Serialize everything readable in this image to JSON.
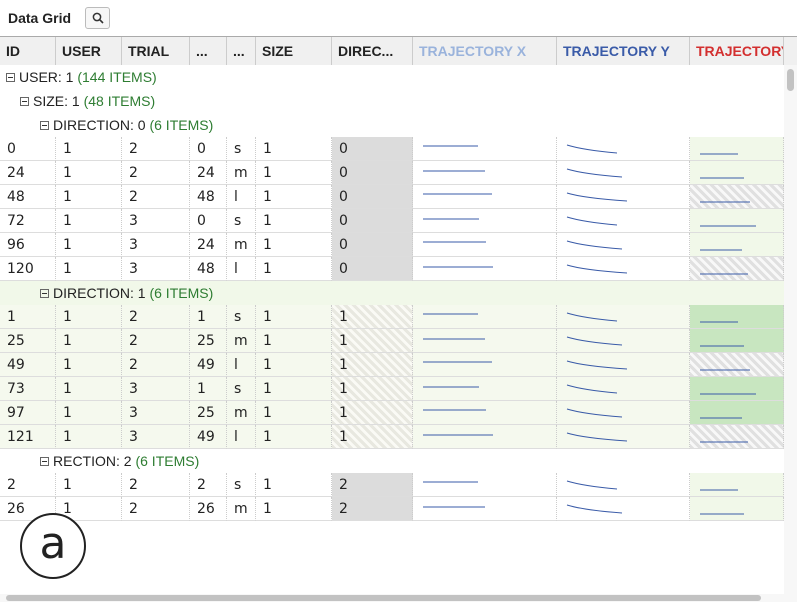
{
  "panel": {
    "title": "Data Grid"
  },
  "columns": [
    {
      "label": "ID",
      "color": "#222222"
    },
    {
      "label": "USER",
      "color": "#222222"
    },
    {
      "label": "TRIAL",
      "color": "#222222"
    },
    {
      "label": "...",
      "color": "#222222"
    },
    {
      "label": "...",
      "color": "#222222"
    },
    {
      "label": "SIZE",
      "color": "#222222"
    },
    {
      "label": "DIREC...",
      "color": "#222222"
    },
    {
      "label": "TRAJECTORY X",
      "color": "#9ab3dc"
    },
    {
      "label": "TRAJECTORY Y",
      "color": "#3a5ba8"
    },
    {
      "label": "TRAJECTORY",
      "color": "#d32f2f"
    }
  ],
  "groups": {
    "user": {
      "label": "USER: 1",
      "count": "(144 ITEMS)"
    },
    "size": {
      "label": "SIZE: 1",
      "count": "(48 ITEMS)"
    },
    "dir0": {
      "label": "DIRECTION: 0",
      "count": "(6 ITEMS)"
    },
    "dir1": {
      "label": "DIRECTION: 1",
      "count": "(6 ITEMS)"
    },
    "dir2": {
      "label": "RECTION: 2",
      "count": "(6 ITEMS)"
    }
  },
  "rows_dir0": [
    [
      "0",
      "1",
      "2",
      "0",
      "s",
      "1",
      "0"
    ],
    [
      "24",
      "1",
      "2",
      "24",
      "m",
      "1",
      "0"
    ],
    [
      "48",
      "1",
      "2",
      "48",
      "l",
      "1",
      "0"
    ],
    [
      "72",
      "1",
      "3",
      "0",
      "s",
      "1",
      "0"
    ],
    [
      "96",
      "1",
      "3",
      "24",
      "m",
      "1",
      "0"
    ],
    [
      "120",
      "1",
      "3",
      "48",
      "l",
      "1",
      "0"
    ]
  ],
  "rows_dir1": [
    [
      "1",
      "1",
      "2",
      "1",
      "s",
      "1",
      "1"
    ],
    [
      "25",
      "1",
      "2",
      "25",
      "m",
      "1",
      "1"
    ],
    [
      "49",
      "1",
      "2",
      "49",
      "l",
      "1",
      "1"
    ],
    [
      "73",
      "1",
      "3",
      "1",
      "s",
      "1",
      "1"
    ],
    [
      "97",
      "1",
      "3",
      "25",
      "m",
      "1",
      "1"
    ],
    [
      "121",
      "1",
      "3",
      "49",
      "l",
      "1",
      "1"
    ]
  ],
  "rows_dir2": [
    [
      "2",
      "1",
      "2",
      "2",
      "s",
      "1",
      "2"
    ],
    [
      "26",
      "1",
      "2",
      "26",
      "m",
      "1",
      "2"
    ]
  ],
  "annotation": {
    "label": "a"
  }
}
